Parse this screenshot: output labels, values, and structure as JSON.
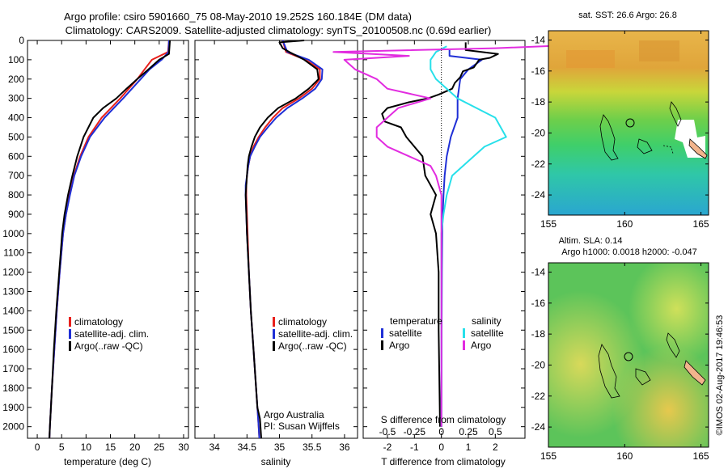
{
  "header": {
    "line1": "Argo profile: csiro 5901660_75 08-May-2010 19.252S 160.184E (DM data)",
    "line2": "Climatology: CARS2009. Satellite-adjusted climatology: synTS_20100508.nc (0.69d earlier)"
  },
  "colors": {
    "climatology": "#e8201c",
    "satellite": "#1f2fd6",
    "argo": "#000000",
    "sal_sat": "#27e0ea",
    "sal_argo": "#e22ce0"
  },
  "chart_data": [
    {
      "type": "line",
      "title": "",
      "xlabel": "temperature (deg C)",
      "ylabel": "depth",
      "xlim": [
        -2,
        31
      ],
      "ylim": [
        0,
        2060
      ],
      "xticks": [
        0,
        5,
        10,
        15,
        20,
        25,
        30
      ],
      "yticks": [
        0,
        100,
        200,
        300,
        400,
        500,
        600,
        700,
        800,
        900,
        1000,
        1100,
        1200,
        1300,
        1400,
        1500,
        1600,
        1700,
        1800,
        1900,
        2000
      ],
      "legend": [
        "climatology",
        "satellite-adj. clim.",
        "Argo(..raw -QC)"
      ],
      "series": [
        {
          "name": "climatology",
          "depth": [
            0,
            60,
            100,
            150,
            200,
            300,
            400,
            500,
            600,
            700,
            800,
            900,
            1000,
            1200,
            1400,
            1600,
            1800,
            2000,
            2060
          ],
          "values": [
            27.0,
            26.8,
            23.5,
            22.0,
            20.5,
            17.0,
            13.2,
            10.5,
            8.8,
            7.5,
            6.6,
            5.9,
            5.3,
            4.6,
            4.0,
            3.5,
            3.0,
            2.6,
            2.5
          ]
        },
        {
          "name": "satellite-adj. clim.",
          "depth": [
            0,
            60,
            100,
            150,
            200,
            300,
            400,
            500,
            600,
            700,
            800,
            900,
            1000,
            1200,
            1400,
            1600,
            1800,
            2000,
            2060
          ],
          "values": [
            27.0,
            26.9,
            25.5,
            23.0,
            21.2,
            17.6,
            13.8,
            10.8,
            9.0,
            7.6,
            6.7,
            5.9,
            5.3,
            4.6,
            4.0,
            3.5,
            3.0,
            2.6,
            2.5
          ]
        },
        {
          "name": "Argo(..raw -QC)",
          "depth": [
            0,
            70,
            100,
            150,
            200,
            250,
            300,
            350,
            400,
            500,
            600,
            700,
            800,
            900,
            1000,
            1200,
            1400,
            1600,
            1800,
            2000,
            2060
          ],
          "values": [
            27.2,
            27.0,
            25.0,
            22.8,
            20.5,
            18.3,
            16.2,
            13.5,
            11.5,
            9.5,
            8.2,
            7.2,
            6.3,
            5.6,
            5.1,
            4.5,
            3.9,
            3.4,
            3.0,
            2.6,
            2.5
          ]
        }
      ]
    },
    {
      "type": "line",
      "xlabel": "salinity",
      "xlim": [
        33.7,
        36.2
      ],
      "ylim": [
        0,
        2060
      ],
      "xticks": [
        34,
        34.5,
        35,
        35.5,
        36
      ],
      "legend": [
        "climatology",
        "satellite-adj. clim.",
        "Argo(..raw -QC)"
      ],
      "annotation": [
        "Argo Australia",
        "PI: Susan Wijffels"
      ],
      "series": [
        {
          "name": "climatology",
          "depth": [
            0,
            60,
            100,
            150,
            200,
            250,
            300,
            350,
            400,
            450,
            500,
            550,
            600,
            650,
            700,
            750,
            800,
            900,
            1000,
            1200,
            1400,
            1600,
            1800,
            2000,
            2060
          ],
          "values": [
            35.05,
            35.1,
            35.4,
            35.62,
            35.62,
            35.5,
            35.3,
            35.05,
            34.9,
            34.78,
            34.68,
            34.6,
            34.55,
            34.52,
            34.5,
            34.49,
            34.49,
            34.5,
            34.51,
            34.53,
            34.56,
            34.6,
            34.64,
            34.68,
            34.69
          ]
        },
        {
          "name": "satellite-adj. clim.",
          "depth": [
            0,
            60,
            100,
            150,
            200,
            250,
            300,
            350,
            400,
            450,
            500,
            550,
            600,
            650,
            700,
            750,
            800,
            900,
            1000,
            1200,
            1400,
            1600,
            1800,
            2000,
            2060
          ],
          "values": [
            35.05,
            35.12,
            35.45,
            35.66,
            35.65,
            35.55,
            35.35,
            35.12,
            34.95,
            34.82,
            34.7,
            34.62,
            34.55,
            34.52,
            34.5,
            34.48,
            34.48,
            34.49,
            34.5,
            34.53,
            34.56,
            34.6,
            34.64,
            34.68,
            34.69
          ]
        },
        {
          "name": "Argo(..raw -QC)",
          "depth": [
            0,
            10,
            40,
            60,
            100,
            150,
            200,
            250,
            300,
            350,
            400,
            450,
            500,
            550,
            600,
            650,
            700,
            750,
            800,
            900,
            1000,
            1200,
            1400,
            1600,
            1800,
            1900,
            1960,
            2060
          ],
          "values": [
            35.38,
            35.0,
            35.05,
            35.15,
            35.38,
            35.58,
            35.6,
            35.45,
            35.25,
            34.98,
            34.82,
            34.7,
            34.62,
            34.57,
            34.53,
            34.51,
            34.5,
            34.49,
            34.48,
            34.49,
            34.5,
            34.53,
            34.56,
            34.6,
            34.64,
            34.66,
            34.7,
            34.72
          ]
        }
      ]
    },
    {
      "type": "line",
      "xlabel": "T difference from climatology",
      "x2label": "S difference from climatology",
      "xlim": [
        -2.9,
        3.1
      ],
      "ylim": [
        0,
        2060
      ],
      "xticks": [
        -2,
        -1,
        0,
        1,
        2
      ],
      "x2ticks": [
        "-0.5",
        "-0.25",
        "0",
        "0.25",
        "0.5"
      ],
      "legend_title_t": "temperature",
      "legend_title_s": "salinity",
      "legend": [
        "satellite",
        "Argo",
        "satellite",
        "Argo"
      ],
      "series": [
        {
          "name": "temperature satellite",
          "depth": [
            50,
            80,
            100,
            150,
            200,
            300,
            400,
            500,
            600,
            700,
            800,
            900,
            1000,
            1200,
            1500,
            2000
          ],
          "values": [
            0.3,
            0.3,
            1.5,
            1.0,
            0.7,
            0.6,
            0.6,
            0.35,
            0.2,
            0.12,
            0.08,
            0.05,
            0.03,
            0.02,
            0.01,
            0.0
          ]
        },
        {
          "name": "temperature Argo",
          "depth": [
            10,
            50,
            70,
            90,
            100,
            140,
            160,
            190,
            220,
            250,
            280,
            300,
            320,
            350,
            380,
            420,
            450,
            500,
            550,
            600,
            700,
            800,
            900,
            1000,
            1200,
            1500,
            2000
          ],
          "values": [
            0.9,
            0.9,
            2.1,
            1.8,
            1.4,
            1.2,
            0.8,
            0.7,
            0.5,
            0.4,
            -0.1,
            -0.5,
            -1.2,
            -2.0,
            -2.2,
            -2.1,
            -1.5,
            -1.3,
            -1.0,
            -0.7,
            -0.6,
            -0.2,
            -0.4,
            -0.2,
            -0.1,
            -0.1,
            -0.05
          ]
        },
        {
          "name": "salinity satellite",
          "depth": [
            30,
            60,
            100,
            150,
            200,
            300,
            400,
            500,
            550,
            600,
            700,
            800,
            900,
            1000,
            1500,
            2000
          ],
          "values": [
            0.05,
            -0.05,
            -0.1,
            -0.1,
            -0.05,
            0.15,
            0.5,
            0.6,
            0.4,
            0.3,
            0.1,
            0.05,
            0.02,
            0.0,
            0.0,
            0.0
          ]
        },
        {
          "name": "salinity Argo",
          "depth": [
            20,
            40,
            60,
            80,
            100,
            150,
            200,
            250,
            300,
            350,
            400,
            450,
            500,
            550,
            600,
            650,
            700,
            800,
            900,
            1000,
            1500,
            2000
          ],
          "values": [
            1.4,
            0.5,
            -1.0,
            -0.3,
            -0.9,
            -0.8,
            -0.6,
            -0.5,
            -0.1,
            -0.4,
            -0.5,
            -0.6,
            -0.6,
            -0.5,
            -0.3,
            -0.1,
            -0.05,
            0.0,
            0.0,
            0.0,
            0.0,
            0.0
          ]
        }
      ]
    },
    {
      "type": "heatmap",
      "title": "sat. SST: 26.6 Argo: 26.8",
      "xlim": [
        155,
        165.5
      ],
      "ylim": [
        -25.3,
        -13.4
      ],
      "xticks": [
        155,
        160,
        165
      ],
      "yticks": [
        -14,
        -16,
        -18,
        -20,
        -22,
        -24
      ]
    },
    {
      "type": "heatmap",
      "title": "Altim. SLA: 0.14",
      "subtitle": "Argo h1000: 0.0018 h2000: -0.047",
      "xlim": [
        155,
        165.5
      ],
      "ylim": [
        -25.3,
        -13.4
      ],
      "xticks": [
        155,
        160,
        165
      ],
      "yticks": [
        -14,
        -16,
        -18,
        -20,
        -22,
        -24
      ]
    }
  ],
  "footer": {
    "imos": "©IMOS 02-Aug-2017 19:46:53"
  }
}
